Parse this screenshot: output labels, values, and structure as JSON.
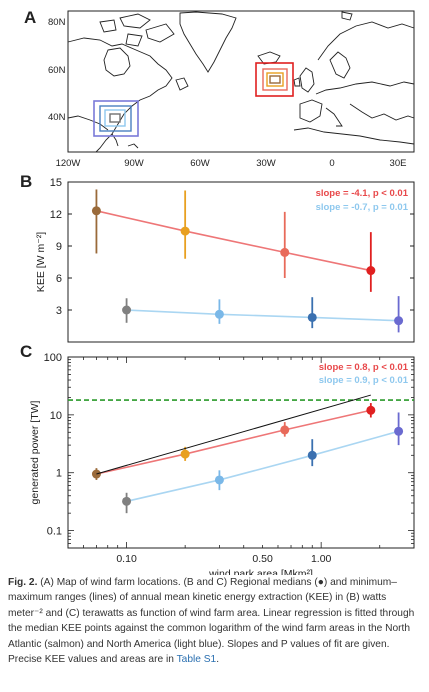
{
  "panels": {
    "a": "A",
    "b": "B",
    "c": "C"
  },
  "map": {
    "lat_labels": [
      "80N",
      "60N",
      "40N"
    ],
    "lon_labels": [
      "120W",
      "90W",
      "60W",
      "30W",
      "0",
      "30E"
    ]
  },
  "chart_data": [
    {
      "type": "scatter",
      "panel": "B",
      "ylabel": "KEE [W m⁻²]",
      "ylim": [
        0,
        15
      ],
      "yticks": [
        3,
        6,
        9,
        12,
        15
      ],
      "x_scale": "log",
      "grid": false,
      "legend": [
        {
          "text": "slope = -4.1, p < 0.01",
          "color": "#e8484a"
        },
        {
          "text": "slope = -0.7, p = 0.01",
          "color": "#8ec8ee"
        }
      ],
      "series": [
        {
          "color": "#e8484a",
          "x": [
            0.07,
            0.2,
            0.65,
            1.8
          ],
          "values": [
            12.3,
            10.4,
            8.4,
            6.7
          ],
          "min": [
            8.3,
            7.8,
            6.0,
            4.7
          ],
          "max": [
            14.3,
            14.2,
            12.2,
            10.3
          ],
          "point_colors": [
            "#9a6a3a",
            "#e8a020",
            "#e86a5a",
            "#e02020"
          ]
        },
        {
          "color": "#8ec8ee",
          "x": [
            0.1,
            0.3,
            0.9,
            2.5
          ],
          "values": [
            3.0,
            2.6,
            2.3,
            2.0
          ],
          "min": [
            1.8,
            1.7,
            1.3,
            0.9
          ],
          "max": [
            4.1,
            4.0,
            4.2,
            4.3
          ],
          "point_colors": [
            "#808080",
            "#7ab8e8",
            "#3a70b0",
            "#6a6ad0"
          ]
        }
      ]
    },
    {
      "type": "scatter",
      "panel": "C",
      "xlabel": "wind park area [Mkm²]",
      "ylabel": "generated power [TW]",
      "ylim": [
        0.05,
        100
      ],
      "x_scale": "log",
      "y_scale": "log",
      "ytick_labels": [
        "100",
        "10",
        "1",
        "0.1"
      ],
      "xtick_labels": [
        "0.10",
        "0.50",
        "1.00"
      ],
      "grid": false,
      "reference_line": {
        "value": 18,
        "color": "#2a9a2a",
        "style": "dashed"
      },
      "legend": [
        {
          "text": "slope = 0.8, p < 0.01",
          "color": "#e8484a"
        },
        {
          "text": "slope = 0.9, p < 0.01",
          "color": "#8ec8ee"
        }
      ],
      "series": [
        {
          "color": "#e8484a",
          "x": [
            0.07,
            0.2,
            0.65,
            1.8
          ],
          "values": [
            0.95,
            2.1,
            5.5,
            12
          ],
          "min": [
            0.75,
            1.6,
            4.2,
            9
          ],
          "max": [
            1.2,
            2.8,
            7.5,
            16
          ],
          "point_colors": [
            "#9a6a3a",
            "#e8a020",
            "#e86a5a",
            "#e02020"
          ]
        },
        {
          "color": "#8ec8ee",
          "x": [
            0.1,
            0.3,
            0.9,
            2.5
          ],
          "values": [
            0.32,
            0.75,
            2.0,
            5.2
          ],
          "min": [
            0.2,
            0.5,
            1.3,
            3.0
          ],
          "max": [
            0.45,
            1.1,
            3.8,
            11
          ],
          "point_colors": [
            "#808080",
            "#7ab8e8",
            "#3a70b0",
            "#6a6ad0"
          ]
        },
        {
          "color": "#111111",
          "x": [
            0.07,
            1.8
          ],
          "values": [
            0.95,
            22
          ]
        }
      ]
    }
  ],
  "caption": {
    "fig_label": "Fig. 2.",
    "text_before_link": "(A) Map of wind farm locations. (B and C) Regional medians (●) and minimum–maximum ranges (lines) of annual mean kinetic energy extraction (KEE) in (B) watts meter⁻² and (C) terawatts as function of wind farm area. Linear regression is fitted through the median KEE points against the common logarithm of the wind farm areas in the North Atlantic (salmon) and North America (light blue). Slopes and P values of fit are given. Precise KEE values and areas are in",
    "link_text": "Table S1",
    "text_after_link": "."
  }
}
